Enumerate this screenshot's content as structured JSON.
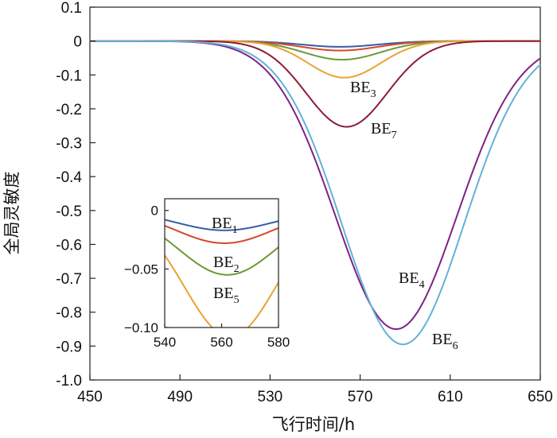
{
  "chart_data": [
    {
      "type": "line",
      "title": "",
      "xlabel": "飞行时间/h",
      "ylabel": "全局灵敏度",
      "xlim": [
        450,
        650
      ],
      "ylim": [
        -1.0,
        0.1
      ],
      "x_ticks": [
        450,
        490,
        530,
        570,
        610,
        650
      ],
      "x_tick_labels": [
        "450",
        "490",
        "530",
        "570",
        "610",
        "650"
      ],
      "y_ticks": [
        0.1,
        0,
        -0.1,
        -0.2,
        -0.3,
        -0.4,
        -0.5,
        -0.6,
        -0.7,
        -0.8,
        -0.9,
        -1.0
      ],
      "y_tick_labels": [
        "0.1",
        "0",
        "-0.1",
        "-0.2",
        "-0.3",
        "-0.4",
        "-0.5",
        "-0.6",
        "-0.7",
        "-0.8",
        "-0.9",
        "-1.0"
      ],
      "grid": false,
      "series": [
        {
          "name": "BE1",
          "label_main": "BE",
          "label_sub": "1",
          "color": "#3a5ba8",
          "center": 561,
          "width": 17,
          "amplitude": -0.017
        },
        {
          "name": "BE2",
          "label_main": "BE",
          "label_sub": "2",
          "color": "#d4472b",
          "center": 561,
          "width": 17,
          "amplitude": -0.028
        },
        {
          "name": "BE5",
          "label_main": "BE",
          "label_sub": "5",
          "color": "#6b9a35",
          "center": 562,
          "width": 17,
          "amplitude": -0.055
        },
        {
          "name": "BE3",
          "label_main": "BE",
          "label_sub": "3",
          "color": "#eaa232",
          "center": 563,
          "width": 16,
          "amplitude": -0.108
        },
        {
          "name": "BE7",
          "label_main": "BE",
          "label_sub": "7",
          "color": "#8b1c36",
          "center": 564,
          "width": 18,
          "amplitude": -0.253
        },
        {
          "name": "BE4",
          "label_main": "BE",
          "label_sub": "4",
          "color": "#7d2384",
          "center": 586,
          "width": 27,
          "amplitude": -0.85
        },
        {
          "name": "BE6",
          "label_main": "BE",
          "label_sub": "6",
          "color": "#62b2d8",
          "center": 589,
          "width": 27,
          "amplitude": -0.895
        }
      ]
    },
    {
      "type": "line",
      "title": "inset",
      "xlim": [
        540,
        580
      ],
      "ylim": [
        -0.1,
        0.01
      ],
      "x_ticks": [
        540,
        560,
        580
      ],
      "x_tick_labels": [
        "540",
        "560",
        "580"
      ],
      "y_ticks": [
        0,
        -0.05,
        -0.1
      ],
      "y_tick_labels": [
        "0",
        "−0.05",
        "−0.10"
      ],
      "series_ref": [
        "BE1",
        "BE2",
        "BE5",
        "BE3"
      ]
    }
  ]
}
